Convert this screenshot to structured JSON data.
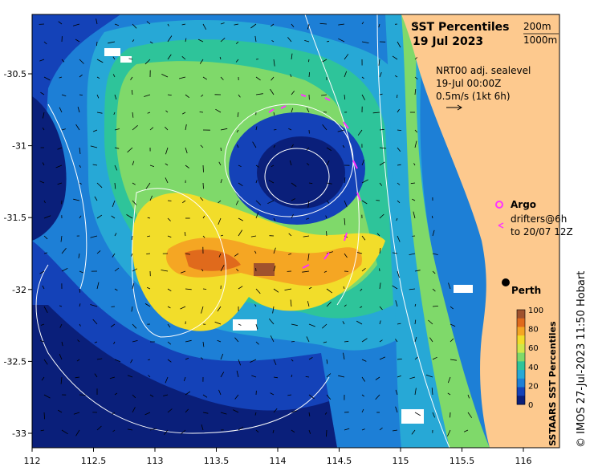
{
  "header": {
    "title": "SST Percentiles",
    "date": "19 Jul 2023",
    "contour_200": "200m",
    "contour_1000": "1000m"
  },
  "sealevel": {
    "line1": "NRT00 adj. sealevel",
    "line2": "19-Jul 00:00Z",
    "line3": "0.5m/s (1kt 6h)"
  },
  "legend": {
    "argo_label": "Argo",
    "drifters_line1": "drifters@6h",
    "drifters_line2": "to 20/07 12Z"
  },
  "place": {
    "perth_label": "Perth"
  },
  "colorbar": {
    "title": "SSTAARS SST Percentiles",
    "ticks": [
      "100",
      "80",
      "60",
      "40",
      "20",
      "0"
    ],
    "colors": [
      "#a0522d",
      "#e06a1c",
      "#f5a623",
      "#f2dd2a",
      "#cfe84a",
      "#7fd96a",
      "#2ec49a",
      "#27a8d6",
      "#1d7fd6",
      "#1442b8",
      "#0a1f7a"
    ]
  },
  "credit": "© IMOS 27-Jul-2023 11:50 Hobart",
  "axes": {
    "x_ticks": [
      "112",
      "112.5",
      "113",
      "113.5",
      "114",
      "114.5",
      "115",
      "115.5",
      "116"
    ],
    "y_ticks": [
      "-30.5",
      "-31",
      "-31.5",
      "-32",
      "-32.5",
      "-33"
    ]
  },
  "colors": {
    "land": "#fdc98e",
    "deep": "#0a1f7a",
    "dark_blue": "#1442b8",
    "blue": "#1d7fd6",
    "cyan": "#27a8d6",
    "teal": "#2ec49a",
    "green": "#7fd96a",
    "yellow": "#f2dd2a",
    "orange": "#f5a623",
    "dark_orange": "#e06a1c",
    "brown": "#a0522d",
    "magenta": "#ff33ff"
  }
}
